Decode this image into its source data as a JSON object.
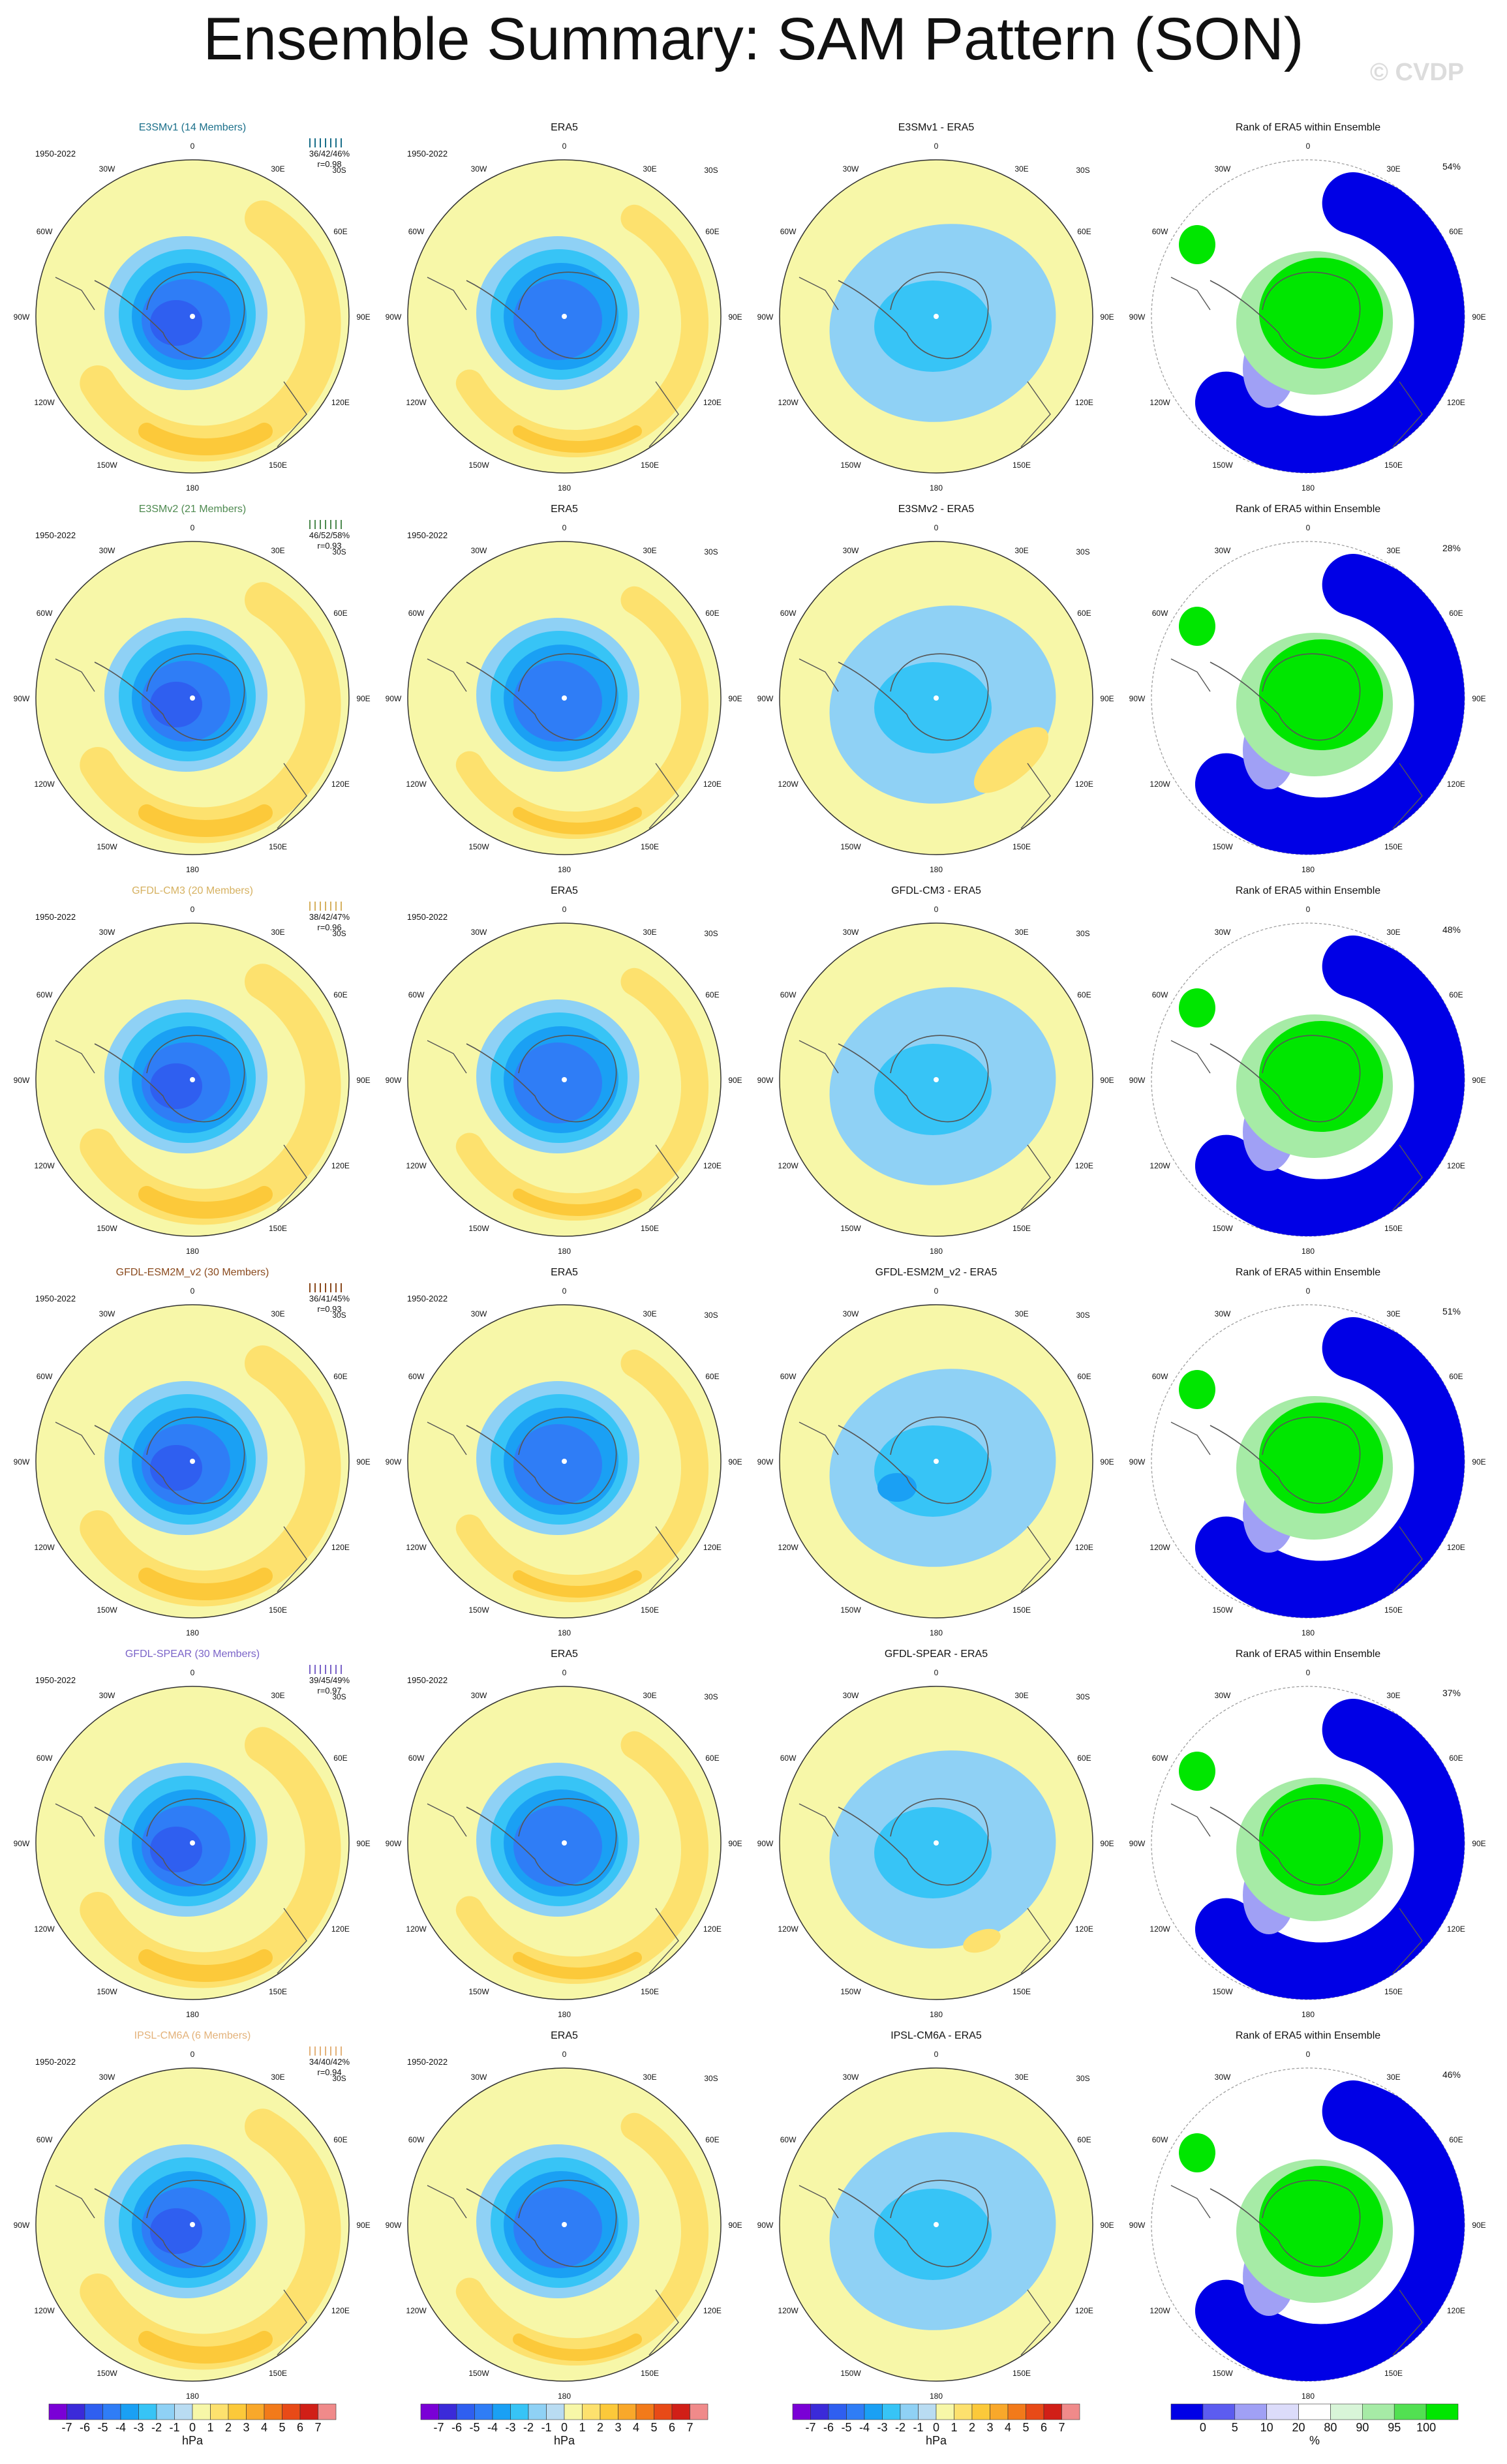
{
  "title": "Ensemble Summary: SAM Pattern (SON)",
  "watermark": "© CVDP",
  "period": "1950-2022",
  "colors": {
    "ens_label": [
      "#1a6f8a",
      "#4e8a50",
      "#d6b160",
      "#8a4a1e",
      "#7b64c8",
      "#e3b27a"
    ]
  },
  "columns": [
    {
      "key": "model"
    },
    {
      "key": "obs"
    },
    {
      "key": "diff"
    },
    {
      "key": "rank",
      "title": "Rank of ERA5 within Ensemble"
    }
  ],
  "rows": [
    {
      "model": "E3SMv1 (14 Members)",
      "obs": "ERA5",
      "diff": "E3SMv1 - ERA5",
      "stats": "36/42/46%",
      "r": "r=0.98",
      "rank_pct": "54%"
    },
    {
      "model": "E3SMv2 (21 Members)",
      "obs": "ERA5",
      "diff": "E3SMv2 - ERA5",
      "stats": "46/52/58%",
      "r": "r=0.93",
      "rank_pct": "28%"
    },
    {
      "model": "GFDL-CM3 (20 Members)",
      "obs": "ERA5",
      "diff": "GFDL-CM3 - ERA5",
      "stats": "38/42/47%",
      "r": "r=0.96",
      "rank_pct": "48%"
    },
    {
      "model": "GFDL-ESM2M_v2 (30 Members)",
      "obs": "ERA5",
      "diff": "GFDL-ESM2M_v2 - ERA5",
      "stats": "36/41/45%",
      "r": "r=0.93",
      "rank_pct": "51%"
    },
    {
      "model": "GFDL-SPEAR (30 Members)",
      "obs": "ERA5",
      "diff": "GFDL-SPEAR - ERA5",
      "stats": "39/45/49%",
      "r": "r=0.97",
      "rank_pct": "37%"
    },
    {
      "model": "IPSL-CM6A (6 Members)",
      "obs": "ERA5",
      "diff": "IPSL-CM6A - ERA5",
      "stats": "34/40/42%",
      "r": "r=0.94",
      "rank_pct": "46%"
    }
  ],
  "axis_labels": {
    "lon": [
      "0",
      "30E",
      "60E",
      "90E",
      "120E",
      "150E",
      "180",
      "150W",
      "120W",
      "90W",
      "60W",
      "30W"
    ],
    "lat": "30S"
  },
  "colorbars": {
    "hpa": {
      "unit": "hPa",
      "labels": [
        "-7",
        "-6",
        "-5",
        "-4",
        "-3",
        "-2",
        "-1",
        "0",
        "1",
        "2",
        "3",
        "4",
        "5",
        "6",
        "7"
      ],
      "colors": [
        "#7a00d6",
        "#3b2ad9",
        "#2f5ff0",
        "#2f7df6",
        "#1aa0f4",
        "#37c4f6",
        "#8fd1f5",
        "#b9dcf2",
        "#f7f7a8",
        "#fde16e",
        "#fcc93a",
        "#f9a82a",
        "#f27a1a",
        "#e84a17",
        "#d11f17",
        "#f08a8a"
      ]
    },
    "rank": {
      "unit": "%",
      "labels": [
        "0",
        "5",
        "10",
        "20",
        "80",
        "90",
        "95",
        "100"
      ],
      "colors": [
        "#0000e6",
        "#5c5cf0",
        "#a0a0f5",
        "#dcdcfa",
        "#ffffff",
        "#d8f5d8",
        "#a6eba6",
        "#52e052",
        "#00e600"
      ]
    }
  }
}
